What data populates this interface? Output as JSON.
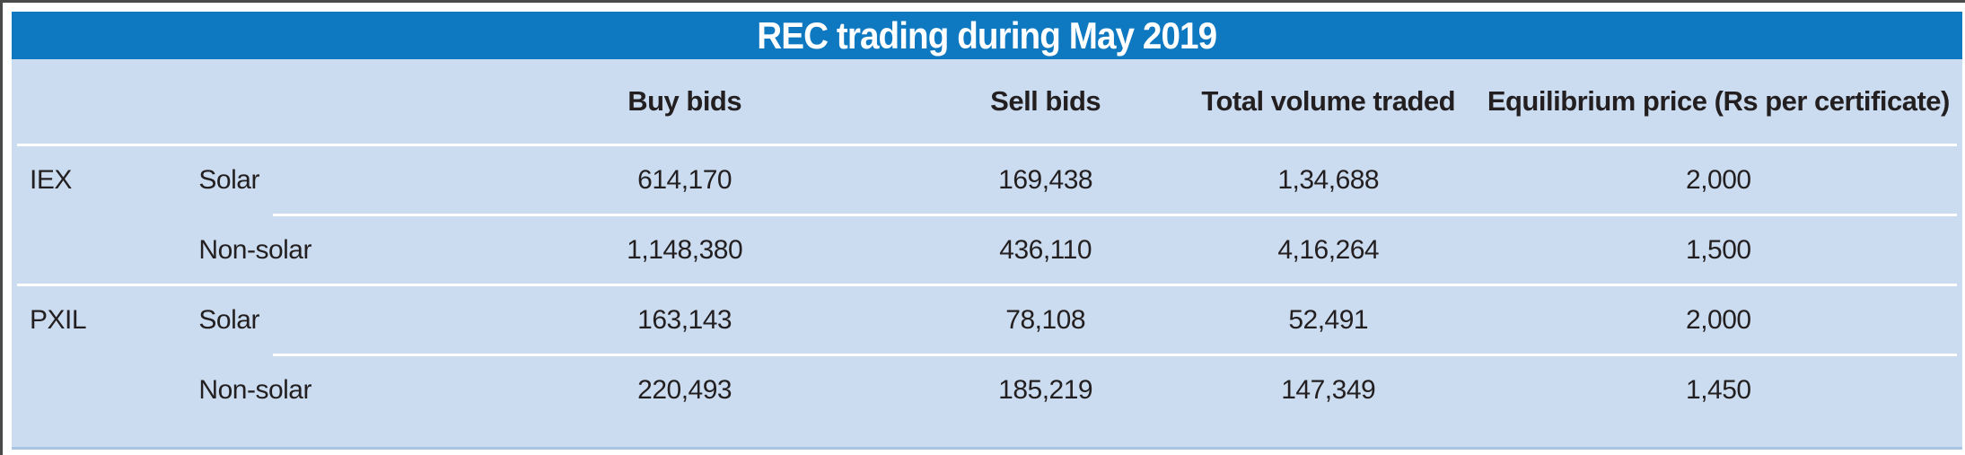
{
  "title": "REC trading during May 2019",
  "header": {
    "exchange": "",
    "segment": "",
    "buy": "Buy bids",
    "sell": "Sell bids",
    "volume": "Total volume traded",
    "price": "Equilibrium price (Rs per certificate)"
  },
  "rows": [
    {
      "exchange": "IEX",
      "segment": "Solar",
      "buy": "614,170",
      "sell": "169,438",
      "volume": "1,34,688",
      "price": "2,000"
    },
    {
      "exchange": "",
      "segment": "Non-solar",
      "buy": "1,148,380",
      "sell": "436,110",
      "volume": "4,16,264",
      "price": "1,500"
    },
    {
      "exchange": "PXIL",
      "segment": "Solar",
      "buy": "163,143",
      "sell": "78,108",
      "volume": "52,491",
      "price": "2,000"
    },
    {
      "exchange": "",
      "segment": "Non-solar",
      "buy": "220,493",
      "sell": "185,219",
      "volume": "147,349",
      "price": "1,450"
    }
  ],
  "colors": {
    "title_bar": "#0e79c0",
    "table_background": "#cbdcf0",
    "text": "#231f20",
    "title_text": "#ffffff"
  },
  "chart_data": {
    "type": "table",
    "title": "REC trading during May 2019",
    "columns": [
      "",
      "",
      "Buy bids",
      "Sell bids",
      "Total volume traded",
      "Equilibrium price (Rs per certificate)"
    ],
    "rows": [
      [
        "IEX",
        "Solar",
        "614,170",
        "169,438",
        "1,34,688",
        "2,000"
      ],
      [
        "",
        "Non-solar",
        "1,148,380",
        "436,110",
        "4,16,264",
        "1,500"
      ],
      [
        "PXIL",
        "Solar",
        "163,143",
        "78,108",
        "52,491",
        "2,000"
      ],
      [
        "",
        "Non-solar",
        "220,493",
        "185,219",
        "147,349",
        "1,450"
      ]
    ]
  }
}
